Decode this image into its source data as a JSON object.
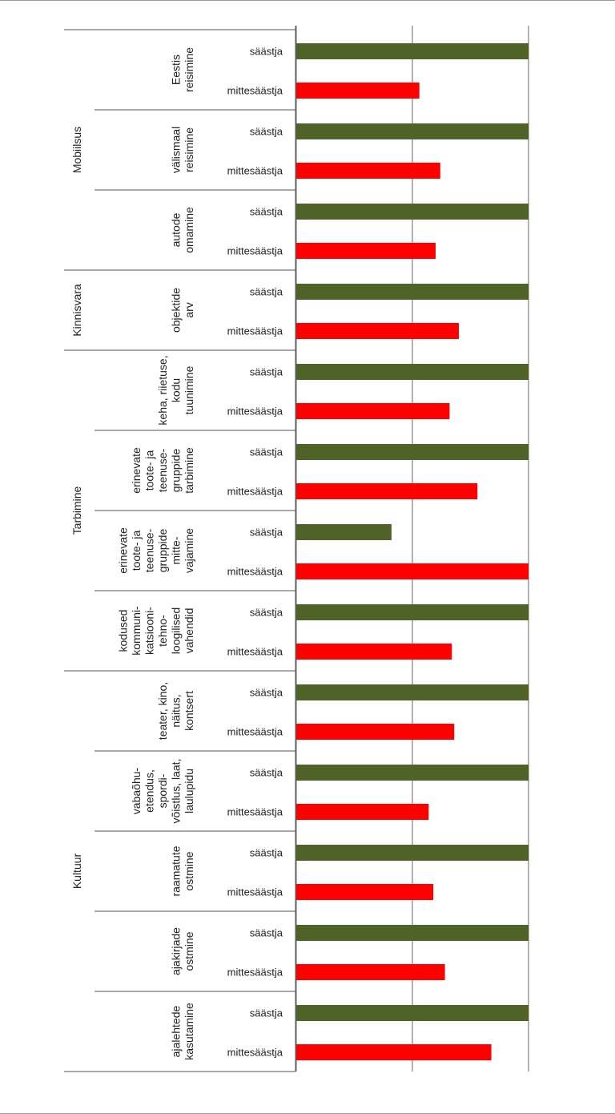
{
  "chart_data": {
    "type": "bar",
    "orientation": "horizontal",
    "title": "",
    "xlabel": "",
    "ylabel": "",
    "grid": true,
    "legend": "none",
    "xlim": [
      0,
      100
    ],
    "colors": {
      "saastja": "#4f6228",
      "mittesaastja": "#ff0000"
    },
    "groups": [
      {
        "name": "Mobiilsus",
        "categories": [
          {
            "lines": [
              "Eestis",
              "reisimine"
            ],
            "saastja": 100,
            "mittesaastja": 53
          },
          {
            "lines": [
              "välismaal",
              "reisimine"
            ],
            "saastja": 100,
            "mittesaastja": 62
          },
          {
            "lines": [
              "autode",
              "omamine"
            ],
            "saastja": 100,
            "mittesaastja": 60
          }
        ]
      },
      {
        "name": "Kinnisvara",
        "categories": [
          {
            "lines": [
              "objektide",
              "arv"
            ],
            "saastja": 100,
            "mittesaastja": 70
          }
        ]
      },
      {
        "name": "Tarbimine",
        "categories": [
          {
            "lines": [
              "keha, riietuse,",
              "kodu",
              "tuunimine"
            ],
            "saastja": 100,
            "mittesaastja": 66
          },
          {
            "lines": [
              "erinevate",
              "toote- ja",
              "teenuse-",
              "gruppide",
              "tarbimine"
            ],
            "saastja": 100,
            "mittesaastja": 78
          },
          {
            "lines": [
              "erinevate",
              "toote- ja",
              "teenuse-",
              "gruppide",
              "mitte-",
              "vajamine"
            ],
            "saastja": 41,
            "mittesaastja": 100
          },
          {
            "lines": [
              "kodused",
              "kommuni-",
              "katsiooni-",
              "tehno-",
              "loogilised",
              "vahendid"
            ],
            "saastja": 100,
            "mittesaastja": 67
          }
        ]
      },
      {
        "name": "Kultuur",
        "categories": [
          {
            "lines": [
              "teater, kino,",
              "näitus,",
              "kontsert"
            ],
            "saastja": 100,
            "mittesaastja": 68
          },
          {
            "lines": [
              "vabaõhu-",
              "etendus,",
              "spordi-",
              "võistlus, laat,",
              "laulupidu"
            ],
            "saastja": 100,
            "mittesaastja": 57
          },
          {
            "lines": [
              "raamatute",
              "ostmine"
            ],
            "saastja": 100,
            "mittesaastja": 59
          },
          {
            "lines": [
              "ajakirjade",
              "ostmine"
            ],
            "saastja": 100,
            "mittesaastja": 64
          },
          {
            "lines": [
              "ajalehtede",
              "kasutamine"
            ],
            "saastja": 100,
            "mittesaastja": 84
          }
        ]
      }
    ],
    "series": [
      {
        "key": "saastja",
        "name": "säästja"
      },
      {
        "key": "mittesaastja",
        "name": "mittesäästja"
      }
    ]
  }
}
